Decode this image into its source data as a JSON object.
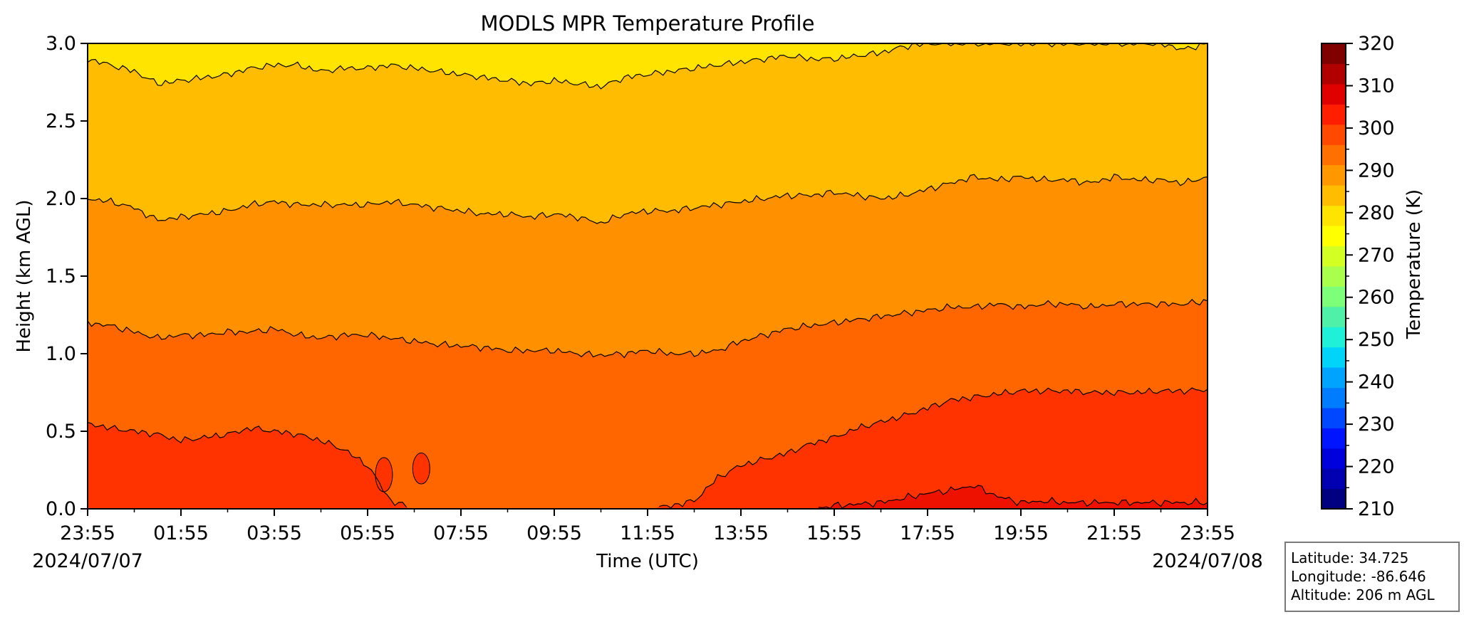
{
  "chart_data": {
    "type": "heatmap",
    "title": "MODLS MPR Temperature Profile",
    "xlabel": "Time (UTC)",
    "ylabel": "Height (km AGL)",
    "x_ticks": [
      "23:55",
      "01:55",
      "03:55",
      "05:55",
      "07:55",
      "09:55",
      "11:55",
      "13:55",
      "15:55",
      "17:55",
      "19:55",
      "21:55",
      "23:55"
    ],
    "x_hours": [
      0,
      2,
      4,
      6,
      8,
      10,
      12,
      14,
      16,
      18,
      20,
      22,
      24
    ],
    "start_date": "2024/07/07",
    "end_date": "2024/07/08",
    "ylim": [
      0,
      3
    ],
    "y_ticks": [
      "0.0",
      "0.5",
      "1.0",
      "1.5",
      "2.0",
      "2.5",
      "3.0"
    ],
    "y_tick_values": [
      0,
      0.5,
      1.0,
      1.5,
      2.0,
      2.5,
      3.0
    ],
    "colorbar": {
      "label": "Temperature (K)",
      "min": 210,
      "max": 320,
      "tick_labels": [
        "210",
        "220",
        "230",
        "240",
        "250",
        "260",
        "270",
        "280",
        "290",
        "300",
        "310",
        "320"
      ],
      "tick_values": [
        210,
        220,
        230,
        240,
        250,
        260,
        270,
        280,
        290,
        300,
        310,
        320
      ],
      "colors": [
        "#000080",
        "#0000b0",
        "#0000dd",
        "#0014ff",
        "#0048ff",
        "#007cff",
        "#00a4ff",
        "#00d4f8",
        "#1ff0d8",
        "#4ff0a8",
        "#7dff7a",
        "#aaff4d",
        "#d4ff22",
        "#ffff00",
        "#ffe400",
        "#ffbc00",
        "#ff9800",
        "#ff7000",
        "#ff4800",
        "#ff1e00",
        "#e00000",
        "#b00000",
        "#800000"
      ]
    },
    "contour_levels": [
      {
        "temperature_band": "305-310",
        "height_km": [
          0.0,
          0.0,
          0.0,
          0.0,
          0.0,
          0.0,
          0.0,
          0.0,
          0.0,
          0.0,
          0.0,
          0.0,
          0.0,
          0.0,
          0.0,
          0.0,
          0.0,
          0.0,
          0.0,
          0.0,
          0.0,
          0.0,
          0.0,
          0.0,
          0.0,
          0.0,
          0.0,
          0.0,
          0.0,
          0.0,
          0.0,
          0.0,
          0.02,
          0.03,
          0.04,
          0.07,
          0.1,
          0.12,
          0.15,
          0.08,
          0.04,
          0.05,
          0.04,
          0.04,
          0.04,
          0.04,
          0.04,
          0.04,
          0.04
        ]
      },
      {
        "temperature_band": "300-305",
        "height_km": [
          0.55,
          0.52,
          0.5,
          0.48,
          0.44,
          0.46,
          0.48,
          0.52,
          0.5,
          0.48,
          0.44,
          0.38,
          0.28,
          0.05,
          0.0,
          0.0,
          0.0,
          0.0,
          0.0,
          0.0,
          0.0,
          0.0,
          0.0,
          0.0,
          0.0,
          0.02,
          0.05,
          0.2,
          0.28,
          0.32,
          0.36,
          0.42,
          0.46,
          0.52,
          0.56,
          0.6,
          0.65,
          0.7,
          0.72,
          0.74,
          0.76,
          0.76,
          0.76,
          0.75,
          0.75,
          0.75,
          0.76,
          0.76,
          0.77
        ]
      },
      {
        "temperature_band": "290-300",
        "height_km": [
          1.2,
          1.18,
          1.14,
          1.1,
          1.12,
          1.12,
          1.14,
          1.14,
          1.16,
          1.12,
          1.1,
          1.12,
          1.12,
          1.1,
          1.08,
          1.06,
          1.05,
          1.04,
          1.02,
          1.02,
          1.02,
          1.0,
          0.99,
          1.0,
          1.02,
          1.0,
          1.0,
          1.02,
          1.08,
          1.12,
          1.16,
          1.18,
          1.2,
          1.22,
          1.24,
          1.26,
          1.28,
          1.3,
          1.3,
          1.32,
          1.3,
          1.32,
          1.32,
          1.3,
          1.32,
          1.32,
          1.32,
          1.32,
          1.34
        ]
      },
      {
        "temperature_band": "280-290",
        "height_km": [
          2.0,
          1.98,
          1.94,
          1.86,
          1.88,
          1.9,
          1.92,
          1.96,
          1.98,
          1.96,
          1.96,
          1.96,
          1.96,
          1.98,
          1.96,
          1.94,
          1.92,
          1.9,
          1.9,
          1.88,
          1.9,
          1.88,
          1.84,
          1.9,
          1.92,
          1.92,
          1.94,
          1.96,
          1.98,
          2.0,
          2.02,
          2.02,
          2.04,
          2.02,
          2.0,
          2.02,
          2.06,
          2.1,
          2.14,
          2.12,
          2.14,
          2.12,
          2.12,
          2.1,
          2.14,
          2.12,
          2.12,
          2.1,
          2.14
        ]
      },
      {
        "temperature_band": "270-280",
        "height_km": [
          2.9,
          2.86,
          2.82,
          2.74,
          2.76,
          2.78,
          2.8,
          2.84,
          2.86,
          2.86,
          2.82,
          2.84,
          2.84,
          2.86,
          2.84,
          2.82,
          2.8,
          2.78,
          2.76,
          2.74,
          2.76,
          2.74,
          2.72,
          2.78,
          2.8,
          2.82,
          2.84,
          2.86,
          2.88,
          2.9,
          2.92,
          2.9,
          2.9,
          2.92,
          2.94,
          2.98,
          3.0,
          3.0,
          3.0,
          3.0,
          3.0,
          3.0,
          3.0,
          3.0,
          3.0,
          3.0,
          3.0,
          2.96,
          3.0
        ]
      }
    ],
    "regions_fill": [
      {
        "range": "above_270-280",
        "color": "#ffe400"
      },
      {
        "range": "270-280_to_280-290",
        "color": "#ffbc00"
      },
      {
        "range": "280-290_to_290-300",
        "color": "#ff9000"
      },
      {
        "range": "290-300_to_300-305",
        "color": "#ff6600"
      },
      {
        "range": "300-305_to_305-310",
        "color": "#ff3300"
      },
      {
        "range": "below_305-310",
        "color": "#ee1100"
      }
    ],
    "grid": false,
    "legend": "none"
  },
  "info_box": {
    "latitude": "Latitude: 34.725",
    "longitude": "Longitude: -86.646",
    "altitude": "Altitude: 206 m AGL"
  }
}
